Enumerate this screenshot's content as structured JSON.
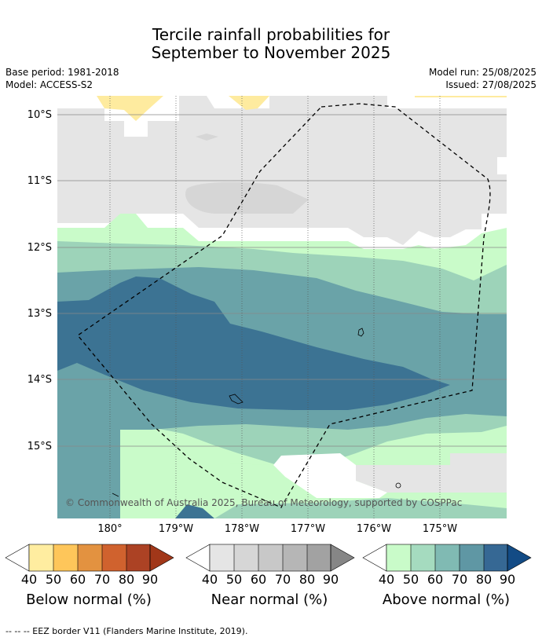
{
  "header": {
    "title_line1": "Tercile rainfall probabilities for",
    "title_line2": "September to November 2025",
    "base_period": "Base period: 1981-2018",
    "model": "Model: ACCESS-S2",
    "model_run": "Model run: 25/08/2025",
    "issued": "Issued: 27/08/2025"
  },
  "map": {
    "lat_labels": [
      "10°S",
      "11°S",
      "12°S",
      "13°S",
      "14°S",
      "15°S"
    ],
    "lon_labels": [
      "180°",
      "179°W",
      "178°W",
      "177°W",
      "176°W",
      "175°W"
    ],
    "copyright": "© Commonwealth of Australia 2025, Bureau of Meteorology, supported by COSPPac",
    "layers": [
      {
        "category": "Near normal",
        "range": "40-50",
        "color": "#e5e5e5"
      },
      {
        "category": "Near normal",
        "range": "50-60",
        "color": "#d6d6d6"
      },
      {
        "category": "Below normal",
        "range": "40-50",
        "color": "#feeb9f"
      },
      {
        "category": "Above normal",
        "range": "40-50",
        "color": "#c9fbc9"
      },
      {
        "category": "Above normal",
        "range": "50-60",
        "color": "#9dd3b9"
      },
      {
        "category": "Above normal",
        "range": "60-70",
        "color": "#6aa3a8"
      },
      {
        "category": "Above normal",
        "range": "70-80",
        "color": "#3c7393"
      }
    ]
  },
  "colorbars": [
    {
      "caption": "Below normal (%)",
      "ticks": [
        "40",
        "50",
        "60",
        "70",
        "80",
        "90"
      ],
      "colors": [
        "#ffeda0",
        "#fec65a",
        "#e39240",
        "#d0622e",
        "#ac4224",
        "#a13719"
      ]
    },
    {
      "caption": "Near normal (%)",
      "ticks": [
        "40",
        "50",
        "60",
        "70",
        "80",
        "90"
      ],
      "colors": [
        "#e5e5e5",
        "#d6d6d6",
        "#c8c8c8",
        "#b6b6b6",
        "#a2a2a2",
        "#868686"
      ]
    },
    {
      "caption": "Above normal (%)",
      "ticks": [
        "40",
        "50",
        "60",
        "70",
        "80",
        "90"
      ],
      "colors": [
        "#c9fbc9",
        "#a5dbbf",
        "#80bab3",
        "#5f97a4",
        "#366894",
        "#134b85"
      ]
    }
  ],
  "footnote": "-- -- -- EEZ border V11 (Flanders Marine Institute, 2019)."
}
